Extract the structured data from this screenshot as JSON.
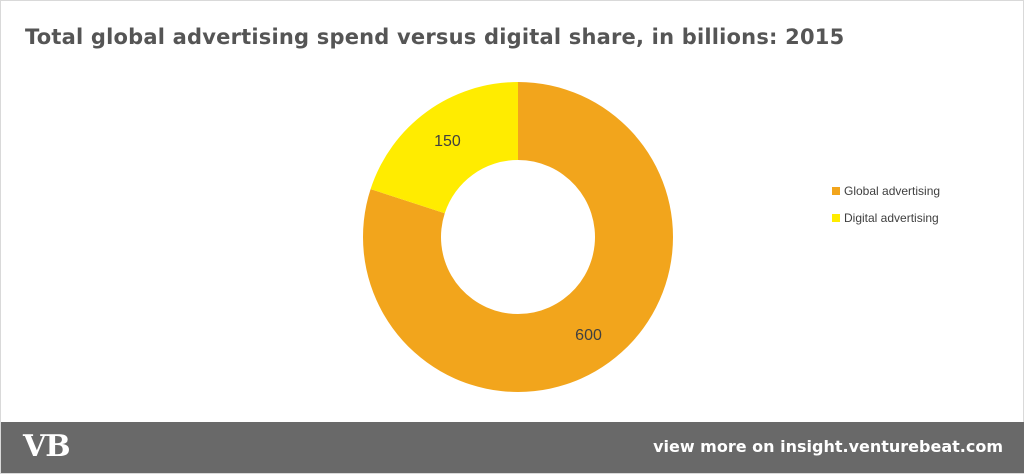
{
  "chart_data": {
    "type": "pie",
    "variant": "donut",
    "title": "Total global advertising spend versus digital share, in billions: 2015",
    "categories": [
      "Global advertising",
      "Digital advertising"
    ],
    "values": [
      600,
      150
    ],
    "data_labels": [
      "600",
      "150"
    ],
    "colors": [
      "#f2a51c",
      "#ffec00"
    ],
    "legend_position": "right"
  },
  "footer": {
    "logo_text": "VB",
    "cta_text": "view more on insight.venturebeat.com"
  },
  "colors": {
    "footer_bg": "#696969",
    "title": "#555555",
    "label": "#404040"
  }
}
